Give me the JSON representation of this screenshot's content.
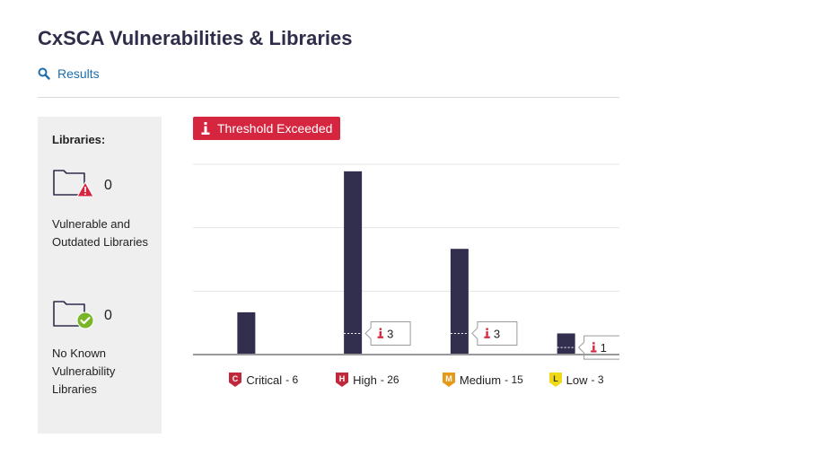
{
  "page": {
    "title": "CxSCA Vulnerabilities & Libraries",
    "results_link": "Results"
  },
  "sidebar": {
    "heading": "Libraries:",
    "vulnerable": {
      "count": "0",
      "label": "Vulnerable and Outdated Libraries",
      "icon": "folder-warning-icon"
    },
    "clean": {
      "count": "0",
      "label": "No Known Vulnerability Libraries",
      "icon": "folder-check-icon"
    }
  },
  "threshold_badge": {
    "label": "Threshold Exceeded",
    "color": "#d6263f"
  },
  "colors": {
    "bar": "#322f4e",
    "critical": "#c0283c",
    "high": "#c0283c",
    "medium": "#e59a1a",
    "low": "#f0d816",
    "link": "#1b6fae"
  },
  "chart_data": {
    "type": "bar",
    "categories": [
      "Critical",
      "High",
      "Medium",
      "Low"
    ],
    "values": [
      6,
      26,
      15,
      3
    ],
    "thresholds": [
      null,
      3,
      3,
      1
    ],
    "ylim": [
      0,
      27
    ],
    "grid": true,
    "legend": [
      {
        "badge": "C",
        "label": "Critical",
        "count": "- 6"
      },
      {
        "badge": "H",
        "label": "High",
        "count": "- 26"
      },
      {
        "badge": "M",
        "label": "Medium",
        "count": "- 15"
      },
      {
        "badge": "L",
        "label": "Low",
        "count": "- 3"
      }
    ]
  }
}
